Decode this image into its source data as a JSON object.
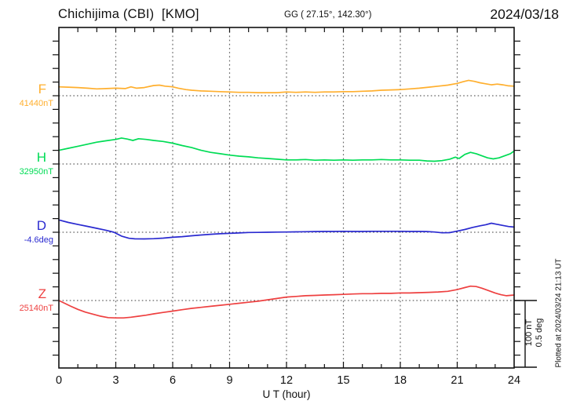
{
  "header": {
    "station": "Chichijima (CBI)  [KMO]",
    "coords": "GG ( 27.15°, 142.30°)",
    "date": "2024/03/18"
  },
  "scale_bar": {
    "nt_label": "100 nT",
    "deg_label": "0.5 deg",
    "nT_per_division": 100,
    "deg_per_division": 0.5
  },
  "plotted_note": "Plotted at 2024/03/24 21:13 UT",
  "chart_data": {
    "type": "line",
    "title": "Chichijima (CBI) [KMO] magnetogram 2024/03/18",
    "xlabel": "U T (hour)",
    "x_range": [
      0,
      24
    ],
    "x_major_grid_hours": 3,
    "x_minor_tick_hours": 1,
    "x_tick_labels": [
      "0",
      "3",
      "6",
      "9",
      "12",
      "15",
      "18",
      "21",
      "24"
    ],
    "y_tick_step_nT": 20,
    "grid": "dotted",
    "series": [
      {
        "name": "F",
        "unit": "nT",
        "baseline_label": "41440nT",
        "baseline_value": 41440,
        "color": "#FFAF2E",
        "points": [
          [
            0,
            13
          ],
          [
            0.5,
            12.5
          ],
          [
            1,
            12
          ],
          [
            1.5,
            11
          ],
          [
            2,
            10
          ],
          [
            2.5,
            10.5
          ],
          [
            3,
            11
          ],
          [
            3.5,
            10.5
          ],
          [
            3.8,
            13
          ],
          [
            4.1,
            11
          ],
          [
            4.5,
            12
          ],
          [
            5,
            15
          ],
          [
            5.3,
            15.5
          ],
          [
            5.6,
            14
          ],
          [
            6,
            13
          ],
          [
            6.3,
            11
          ],
          [
            6.7,
            9
          ],
          [
            7,
            8
          ],
          [
            7.5,
            7
          ],
          [
            8,
            6.5
          ],
          [
            8.5,
            6
          ],
          [
            9,
            5.5
          ],
          [
            9.5,
            5
          ],
          [
            10,
            5
          ],
          [
            10.5,
            4.5
          ],
          [
            11,
            4.5
          ],
          [
            11.5,
            4.5
          ],
          [
            12,
            5.5
          ],
          [
            12.5,
            5
          ],
          [
            13,
            5.5
          ],
          [
            13.5,
            5
          ],
          [
            14,
            5.5
          ],
          [
            14.5,
            5.5
          ],
          [
            15,
            6
          ],
          [
            15.5,
            6
          ],
          [
            16,
            6.5
          ],
          [
            16.5,
            7
          ],
          [
            17,
            8
          ],
          [
            17.5,
            8.5
          ],
          [
            18,
            9
          ],
          [
            18.5,
            10
          ],
          [
            19,
            11
          ],
          [
            19.5,
            12.5
          ],
          [
            20,
            14
          ],
          [
            20.5,
            15.5
          ],
          [
            21,
            18
          ],
          [
            21.3,
            20.5
          ],
          [
            21.6,
            22.5
          ],
          [
            21.9,
            21
          ],
          [
            22.2,
            19
          ],
          [
            22.5,
            17.5
          ],
          [
            22.8,
            16
          ],
          [
            23.1,
            17
          ],
          [
            23.4,
            16
          ],
          [
            23.7,
            14.5
          ],
          [
            24,
            14
          ]
        ]
      },
      {
        "name": "H",
        "unit": "nT",
        "baseline_label": "32950nT",
        "baseline_value": 32950,
        "color": "#00DC55",
        "points": [
          [
            0,
            20
          ],
          [
            0.5,
            23
          ],
          [
            1,
            26
          ],
          [
            1.5,
            29
          ],
          [
            2,
            32
          ],
          [
            2.5,
            34
          ],
          [
            3,
            36
          ],
          [
            3.3,
            38
          ],
          [
            3.6,
            36.5
          ],
          [
            3.9,
            34.5
          ],
          [
            4.2,
            37
          ],
          [
            4.6,
            36
          ],
          [
            5,
            34.5
          ],
          [
            5.5,
            33
          ],
          [
            6,
            30.5
          ],
          [
            6.5,
            27
          ],
          [
            7,
            24
          ],
          [
            7.5,
            20
          ],
          [
            8,
            17
          ],
          [
            8.5,
            15
          ],
          [
            9,
            13
          ],
          [
            9.5,
            11.5
          ],
          [
            10,
            10.5
          ],
          [
            10.5,
            9
          ],
          [
            11,
            8
          ],
          [
            11.5,
            7
          ],
          [
            12,
            6
          ],
          [
            12.5,
            6
          ],
          [
            13,
            6.5
          ],
          [
            13.5,
            5.5
          ],
          [
            14,
            6
          ],
          [
            14.5,
            5.5
          ],
          [
            15,
            6
          ],
          [
            15.5,
            5.5
          ],
          [
            16,
            6
          ],
          [
            16.5,
            6
          ],
          [
            17,
            6.5
          ],
          [
            17.5,
            6
          ],
          [
            18,
            6
          ],
          [
            18.5,
            5.5
          ],
          [
            19,
            5.5
          ],
          [
            19.4,
            4.5
          ],
          [
            19.8,
            4
          ],
          [
            20.2,
            5
          ],
          [
            20.6,
            7
          ],
          [
            20.9,
            10
          ],
          [
            21.1,
            8
          ],
          [
            21.4,
            14
          ],
          [
            21.7,
            17
          ],
          [
            22,
            15
          ],
          [
            22.3,
            12
          ],
          [
            22.6,
            9
          ],
          [
            22.9,
            7.5
          ],
          [
            23.2,
            9
          ],
          [
            23.5,
            12
          ],
          [
            23.8,
            15
          ],
          [
            24,
            19
          ]
        ]
      },
      {
        "name": "D",
        "unit": "deg",
        "baseline_label": "-4.6deg",
        "baseline_value": -4.6,
        "color": "#2A2AD0",
        "points": [
          [
            0,
            0.09
          ],
          [
            0.5,
            0.072
          ],
          [
            1,
            0.057
          ],
          [
            1.5,
            0.043
          ],
          [
            2,
            0.029
          ],
          [
            2.5,
            0.014
          ],
          [
            2.9,
            0
          ],
          [
            3.3,
            -0.028
          ],
          [
            3.7,
            -0.044
          ],
          [
            4,
            -0.048
          ],
          [
            4.5,
            -0.049
          ],
          [
            5,
            -0.047
          ],
          [
            5.5,
            -0.043
          ],
          [
            6,
            -0.037
          ],
          [
            6.5,
            -0.032
          ],
          [
            7,
            -0.026
          ],
          [
            7.5,
            -0.02
          ],
          [
            8,
            -0.015
          ],
          [
            8.5,
            -0.011
          ],
          [
            9,
            -0.008
          ],
          [
            9.5,
            -0.005
          ],
          [
            10,
            -0.002
          ],
          [
            10.5,
            -0.001
          ],
          [
            11,
            0
          ],
          [
            11.5,
            0.001
          ],
          [
            12,
            0.002
          ],
          [
            12.5,
            0.003
          ],
          [
            13,
            0.004
          ],
          [
            13.5,
            0.005
          ],
          [
            14,
            0.006
          ],
          [
            14.5,
            0.006
          ],
          [
            15,
            0.007
          ],
          [
            15.5,
            0.006
          ],
          [
            16,
            0.006
          ],
          [
            16.5,
            0.007
          ],
          [
            17,
            0.007
          ],
          [
            17.5,
            0.007
          ],
          [
            18,
            0.007
          ],
          [
            18.5,
            0.006
          ],
          [
            19,
            0.006
          ],
          [
            19.4,
            0.005
          ],
          [
            19.8,
            0.002
          ],
          [
            20.2,
            -0.004
          ],
          [
            20.6,
            -0.003
          ],
          [
            21,
            0.008
          ],
          [
            21.4,
            0.02
          ],
          [
            21.8,
            0.035
          ],
          [
            22.2,
            0.047
          ],
          [
            22.5,
            0.055
          ],
          [
            22.8,
            0.066
          ],
          [
            23.1,
            0.058
          ],
          [
            23.4,
            0.05
          ],
          [
            23.7,
            0.042
          ],
          [
            24,
            0.038
          ]
        ]
      },
      {
        "name": "Z",
        "unit": "nT",
        "baseline_label": "25140nT",
        "baseline_value": 25140,
        "color": "#EE4040",
        "points": [
          [
            0,
            0
          ],
          [
            0.3,
            -4
          ],
          [
            0.6,
            -8
          ],
          [
            1,
            -13
          ],
          [
            1.4,
            -17
          ],
          [
            1.8,
            -20
          ],
          [
            2.2,
            -23
          ],
          [
            2.6,
            -25
          ],
          [
            3,
            -25.5
          ],
          [
            3.4,
            -25.5
          ],
          [
            3.8,
            -24.5
          ],
          [
            4.2,
            -23
          ],
          [
            4.6,
            -21.5
          ],
          [
            5,
            -19.5
          ],
          [
            5.5,
            -17.5
          ],
          [
            6,
            -15.5
          ],
          [
            6.5,
            -13.5
          ],
          [
            7,
            -11.5
          ],
          [
            7.5,
            -10
          ],
          [
            8,
            -8.5
          ],
          [
            8.5,
            -7
          ],
          [
            9,
            -5.5
          ],
          [
            9.5,
            -4
          ],
          [
            10,
            -2.5
          ],
          [
            10.5,
            -1
          ],
          [
            11,
            1
          ],
          [
            11.5,
            3
          ],
          [
            12,
            5
          ],
          [
            12.5,
            6
          ],
          [
            13,
            7
          ],
          [
            13.5,
            7.5
          ],
          [
            14,
            8
          ],
          [
            14.5,
            8.5
          ],
          [
            15,
            9
          ],
          [
            15.5,
            9.5
          ],
          [
            16,
            10
          ],
          [
            16.5,
            10
          ],
          [
            17,
            10.5
          ],
          [
            17.5,
            10.5
          ],
          [
            18,
            11
          ],
          [
            18.5,
            11
          ],
          [
            19,
            11.5
          ],
          [
            19.5,
            12
          ],
          [
            20,
            12.5
          ],
          [
            20.5,
            13.5
          ],
          [
            21,
            16
          ],
          [
            21.4,
            19
          ],
          [
            21.7,
            21
          ],
          [
            22,
            20.5
          ],
          [
            22.3,
            18
          ],
          [
            22.6,
            15
          ],
          [
            23,
            11
          ],
          [
            23.3,
            8.5
          ],
          [
            23.6,
            7
          ],
          [
            24,
            8
          ]
        ]
      }
    ]
  }
}
